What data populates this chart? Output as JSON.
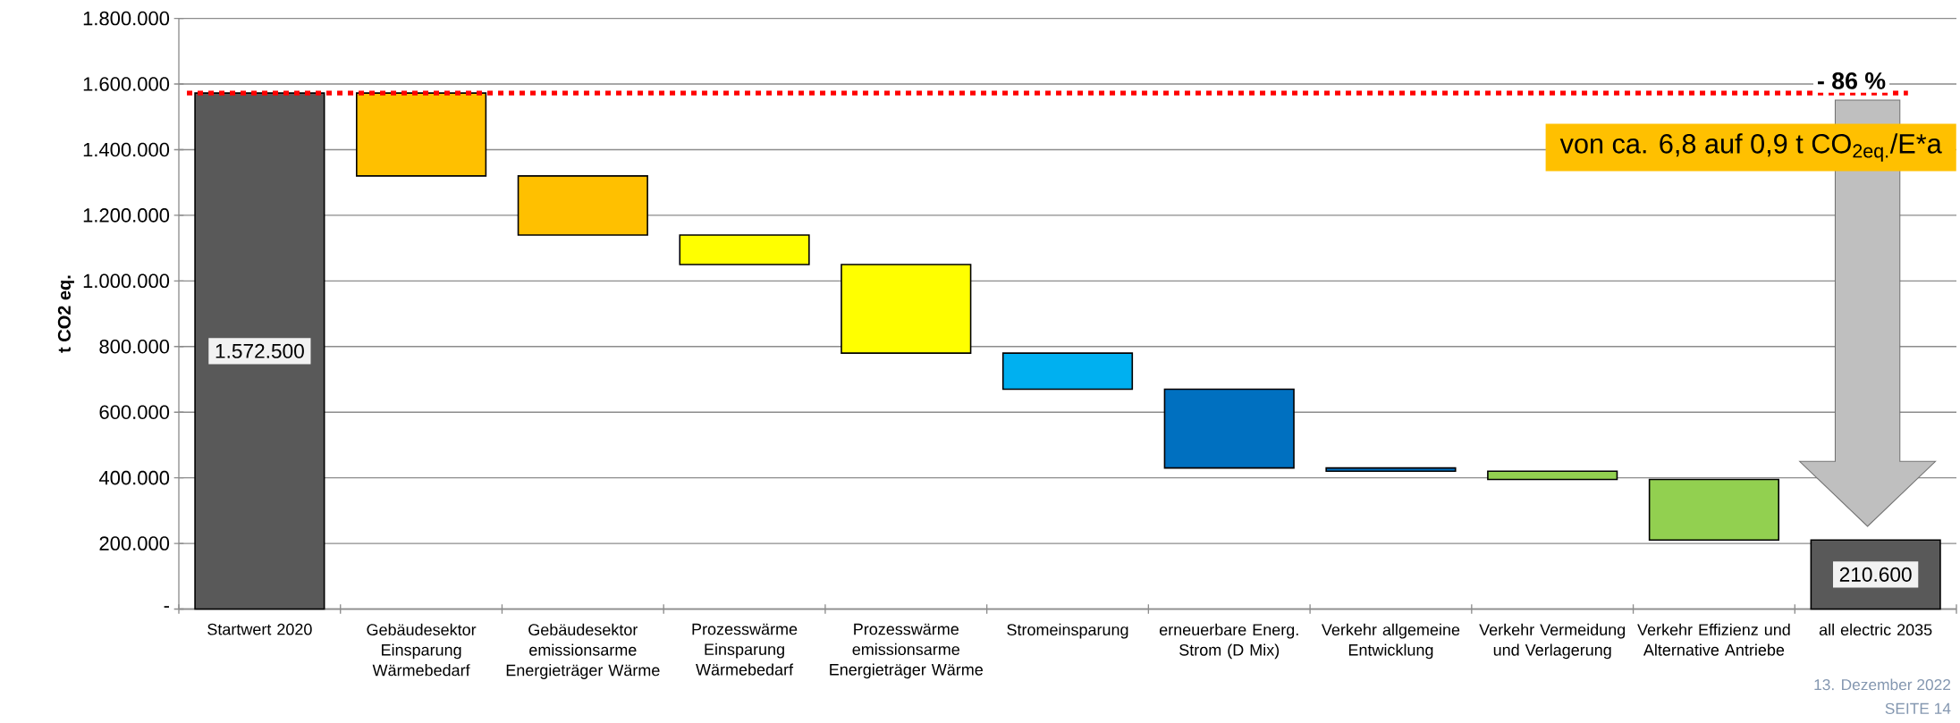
{
  "chart_data": {
    "type": "bar",
    "ylabel": "t CO2 eq.",
    "categories": [
      "Startwert 2020",
      "Gebäudesektor Einsparung Wärmebedarf",
      "Gebäudesektor emissionsarme Energieträger Wärme",
      "Prozesswärme Einsparung Wärmebedarf",
      "Prozesswärme emissionsarme Energieträger Wärme",
      "Stromeinsparung",
      "erneuerbare Energ. Strom (D Mix)",
      "Verkehr allgemeine Entwicklung",
      "Verkehr Vermeidung und Verlagerung",
      "Verkehr Effizienz und Alternative Antriebe",
      "all electric 2035"
    ],
    "values": [
      1572500,
      -252500,
      -180000,
      -90000,
      -270000,
      -110000,
      -240000,
      -10000,
      -25000,
      -184400,
      210600
    ],
    "base": [
      0,
      1572500,
      1320000,
      1140000,
      1050000,
      780000,
      670000,
      430000,
      420000,
      395000,
      0
    ],
    "colors": [
      "#595959",
      "#ffc000",
      "#ffc000",
      "#ffff00",
      "#ffff00",
      "#00b0f0",
      "#0070c0",
      "#0070c0",
      "#92d050",
      "#92d050",
      "#595959"
    ],
    "value_labels": [
      "1.572.500",
      null,
      null,
      null,
      null,
      null,
      null,
      null,
      null,
      null,
      "210.600"
    ],
    "ylim": [
      0,
      1800000
    ],
    "yticks": [
      {
        "value": 0,
        "label": "-"
      },
      {
        "value": 200000,
        "label": "200.000"
      },
      {
        "value": 400000,
        "label": "400.000"
      },
      {
        "value": 600000,
        "label": "600.000"
      },
      {
        "value": 800000,
        "label": "800.000"
      },
      {
        "value": 1000000,
        "label": "1.000.000"
      },
      {
        "value": 1200000,
        "label": "1.200.000"
      },
      {
        "value": 1400000,
        "label": "1.400.000"
      },
      {
        "value": 1600000,
        "label": "1.600.000"
      },
      {
        "value": 1800000,
        "label": "1.800.000"
      }
    ],
    "grid": "y",
    "ref_lines": [
      {
        "axis": "y",
        "value": 1572500,
        "color": "#ff0000",
        "line_style": "dotted"
      }
    ],
    "annotations": [
      "- 86 %",
      "von ca. 6,8 auf 0,9 t CO$_{2eq.}$/E*a",
      "13. Dezember 2022",
      "SEITE 14"
    ]
  }
}
